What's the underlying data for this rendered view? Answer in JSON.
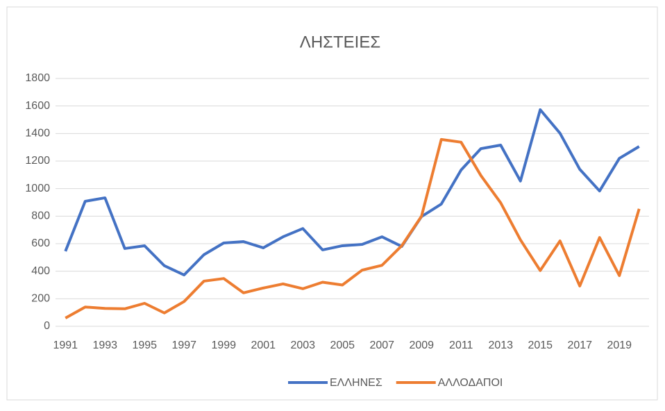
{
  "chart_data": {
    "type": "line",
    "title": "ΛΗΣΤΕΙΕΣ",
    "categories": [
      "1991",
      null,
      "1993",
      null,
      "1995",
      null,
      "1997",
      null,
      "1999",
      null,
      "2001",
      null,
      "2003",
      null,
      "2005",
      null,
      "2007",
      null,
      "2009",
      null,
      "2011",
      null,
      "2013",
      null,
      "2015",
      null,
      "2017",
      null,
      "2019",
      null
    ],
    "series": [
      {
        "name": "ΕΛΛΗΝΕΣ",
        "color": "#4472c4",
        "values": [
          545,
          908,
          933,
          565,
          585,
          440,
          373,
          520,
          605,
          615,
          570,
          650,
          710,
          555,
          585,
          595,
          650,
          580,
          797,
          888,
          1135,
          1290,
          1316,
          1055,
          1573,
          1402,
          1140,
          983,
          1220,
          1306
        ]
      },
      {
        "name": "ΑΛΛΟΔΑΠΟΙ",
        "color": "#ed7d31",
        "values": [
          60,
          140,
          130,
          127,
          167,
          97,
          180,
          328,
          347,
          243,
          278,
          308,
          273,
          320,
          300,
          408,
          443,
          585,
          800,
          1357,
          1337,
          1095,
          897,
          628,
          405,
          620,
          293,
          645,
          368,
          853
        ]
      }
    ],
    "ylim": [
      0,
      1800
    ],
    "yticks": [
      0,
      200,
      400,
      600,
      800,
      1000,
      1200,
      1400,
      1600,
      1800
    ],
    "grid": true,
    "legend": "bottom"
  }
}
